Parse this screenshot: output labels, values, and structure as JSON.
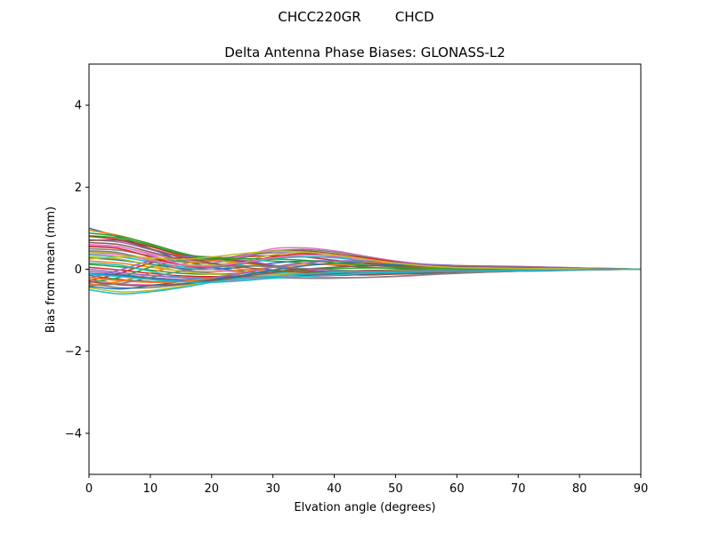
{
  "figure": {
    "suptitle": "CHCC220GR        CHCD"
  },
  "chart_data": {
    "type": "line",
    "title": "Delta Antenna Phase Biases: GLONASS-L2",
    "xlabel": "Elvation angle (degrees)",
    "ylabel": "Bias from mean (mm)",
    "xlim": [
      0,
      90
    ],
    "ylim": [
      -5,
      5
    ],
    "xticks": [
      0,
      10,
      20,
      30,
      40,
      50,
      60,
      70,
      80,
      90
    ],
    "xtick_labels": [
      "0",
      "10",
      "20",
      "30",
      "40",
      "50",
      "60",
      "70",
      "80",
      "90"
    ],
    "yticks": [
      -4,
      -2,
      0,
      2,
      4
    ],
    "ytick_labels": [
      "−4",
      "−2",
      "0",
      "2",
      "4"
    ],
    "grid": false,
    "legend": "none",
    "colors": [
      "#1f77b4",
      "#ff7f0e",
      "#2ca02c",
      "#d62728",
      "#9467bd",
      "#8c564b",
      "#e377c2",
      "#7f7f7f",
      "#bcbd22",
      "#17becf"
    ],
    "x": [
      0,
      5,
      10,
      15,
      20,
      25,
      30,
      35,
      40,
      45,
      50,
      55,
      60,
      65,
      70,
      75,
      80,
      85,
      90
    ],
    "series": [
      {
        "values": [
          1.0,
          0.78,
          0.5,
          0.22,
          0.05,
          -0.05,
          -0.1,
          -0.12,
          -0.12,
          -0.1,
          -0.08,
          -0.06,
          -0.04,
          -0.02,
          0.0,
          0.02,
          0.03,
          0.02,
          0.0
        ]
      },
      {
        "values": [
          0.95,
          0.82,
          0.6,
          0.32,
          0.12,
          0.0,
          -0.05,
          -0.08,
          -0.08,
          -0.06,
          -0.04,
          -0.03,
          -0.01,
          0.0,
          0.02,
          0.03,
          0.03,
          0.02,
          0.0
        ]
      },
      {
        "values": [
          0.88,
          0.8,
          0.62,
          0.4,
          0.25,
          0.22,
          0.2,
          0.15,
          0.1,
          0.05,
          0.02,
          0.0,
          -0.02,
          -0.02,
          -0.01,
          0.0,
          0.01,
          0.01,
          0.0
        ]
      },
      {
        "values": [
          0.8,
          0.72,
          0.55,
          0.35,
          0.28,
          0.3,
          0.33,
          0.3,
          0.22,
          0.14,
          0.08,
          0.04,
          0.02,
          0.01,
          0.0,
          0.0,
          0.0,
          0.0,
          0.0
        ]
      },
      {
        "values": [
          0.72,
          0.66,
          0.48,
          0.3,
          0.25,
          0.32,
          0.4,
          0.38,
          0.3,
          0.2,
          0.12,
          0.06,
          0.03,
          0.02,
          0.01,
          0.0,
          0.0,
          0.0,
          0.0
        ]
      },
      {
        "values": [
          0.65,
          0.6,
          0.42,
          0.25,
          0.22,
          0.34,
          0.45,
          0.45,
          0.38,
          0.26,
          0.15,
          0.08,
          0.05,
          0.04,
          0.03,
          0.02,
          0.01,
          0.0,
          0.0
        ]
      },
      {
        "values": [
          0.58,
          0.54,
          0.38,
          0.22,
          0.2,
          0.32,
          0.5,
          0.52,
          0.45,
          0.32,
          0.2,
          0.12,
          0.08,
          0.06,
          0.05,
          0.04,
          0.02,
          0.01,
          0.0
        ]
      },
      {
        "values": [
          0.5,
          0.46,
          0.32,
          0.18,
          0.15,
          0.28,
          0.44,
          0.48,
          0.42,
          0.3,
          0.18,
          0.1,
          0.06,
          0.05,
          0.04,
          0.03,
          0.02,
          0.01,
          0.0
        ]
      },
      {
        "values": [
          0.42,
          0.38,
          0.25,
          0.12,
          0.1,
          0.2,
          0.35,
          0.4,
          0.36,
          0.26,
          0.16,
          0.09,
          0.05,
          0.04,
          0.03,
          0.02,
          0.01,
          0.0,
          0.0
        ]
      },
      {
        "values": [
          0.35,
          0.3,
          0.18,
          0.06,
          0.04,
          0.12,
          0.25,
          0.3,
          0.28,
          0.2,
          0.12,
          0.07,
          0.04,
          0.03,
          0.02,
          0.02,
          0.01,
          0.0,
          0.0
        ]
      },
      {
        "values": [
          0.28,
          0.22,
          0.12,
          0.02,
          0.0,
          0.05,
          0.15,
          0.2,
          0.2,
          0.15,
          0.1,
          0.06,
          0.03,
          0.02,
          0.02,
          0.01,
          0.01,
          0.0,
          0.0
        ]
      },
      {
        "values": [
          0.2,
          0.15,
          0.05,
          -0.04,
          -0.06,
          -0.02,
          0.05,
          0.1,
          0.12,
          0.1,
          0.07,
          0.04,
          0.02,
          0.02,
          0.01,
          0.01,
          0.0,
          0.0,
          0.0
        ]
      },
      {
        "values": [
          0.12,
          0.06,
          -0.02,
          -0.1,
          -0.12,
          -0.1,
          -0.05,
          0.0,
          0.02,
          0.03,
          0.03,
          0.02,
          0.02,
          0.01,
          0.01,
          0.0,
          0.0,
          0.0,
          0.0
        ]
      },
      {
        "values": [
          0.05,
          -0.02,
          -0.1,
          -0.16,
          -0.18,
          -0.16,
          -0.12,
          -0.08,
          -0.05,
          -0.03,
          -0.02,
          -0.01,
          0.0,
          0.0,
          0.0,
          0.0,
          0.0,
          0.0,
          0.0
        ]
      },
      {
        "values": [
          -0.05,
          -0.12,
          -0.2,
          -0.25,
          -0.26,
          -0.24,
          -0.2,
          -0.15,
          -0.1,
          -0.07,
          -0.05,
          -0.03,
          -0.02,
          -0.01,
          0.0,
          0.0,
          0.0,
          0.0,
          0.0
        ]
      },
      {
        "values": [
          -0.15,
          -0.25,
          -0.3,
          -0.3,
          -0.28,
          -0.24,
          -0.2,
          -0.16,
          -0.12,
          -0.09,
          -0.06,
          -0.04,
          -0.03,
          -0.02,
          -0.01,
          0.0,
          0.0,
          0.0,
          0.0
        ]
      },
      {
        "values": [
          -0.25,
          -0.35,
          -0.38,
          -0.35,
          -0.3,
          -0.25,
          -0.2,
          -0.17,
          -0.15,
          -0.12,
          -0.08,
          -0.05,
          -0.04,
          -0.03,
          -0.02,
          -0.02,
          -0.01,
          0.0,
          0.0
        ]
      },
      {
        "values": [
          -0.35,
          -0.45,
          -0.45,
          -0.38,
          -0.3,
          -0.22,
          -0.15,
          -0.12,
          -0.1,
          -0.08,
          -0.06,
          -0.05,
          -0.04,
          -0.04,
          -0.03,
          -0.02,
          -0.01,
          0.0,
          0.0
        ]
      },
      {
        "values": [
          -0.45,
          -0.55,
          -0.52,
          -0.42,
          -0.3,
          -0.2,
          -0.12,
          -0.08,
          -0.08,
          -0.08,
          -0.07,
          -0.06,
          -0.05,
          -0.04,
          -0.03,
          -0.02,
          -0.01,
          0.0,
          0.0
        ]
      },
      {
        "values": [
          -0.5,
          -0.6,
          -0.55,
          -0.45,
          -0.32,
          -0.2,
          -0.1,
          -0.05,
          -0.05,
          -0.06,
          -0.06,
          -0.05,
          -0.05,
          -0.04,
          -0.03,
          -0.02,
          -0.01,
          0.0,
          0.0
        ]
      },
      {
        "values": [
          -0.42,
          -0.48,
          -0.4,
          -0.3,
          -0.22,
          -0.18,
          -0.15,
          -0.15,
          -0.15,
          -0.13,
          -0.1,
          -0.08,
          -0.06,
          -0.05,
          -0.04,
          -0.03,
          -0.02,
          -0.01,
          0.0
        ]
      },
      {
        "values": [
          -0.38,
          -0.3,
          -0.1,
          0.12,
          0.2,
          0.15,
          0.05,
          -0.05,
          -0.1,
          -0.1,
          -0.08,
          -0.06,
          -0.04,
          -0.03,
          -0.02,
          -0.02,
          -0.01,
          0.0,
          0.0
        ]
      },
      {
        "values": [
          -0.32,
          -0.2,
          0.05,
          0.22,
          0.25,
          0.18,
          0.06,
          -0.04,
          -0.1,
          -0.1,
          -0.08,
          -0.06,
          -0.04,
          -0.03,
          -0.02,
          -0.01,
          -0.01,
          0.0,
          0.0
        ]
      },
      {
        "values": [
          -0.28,
          -0.1,
          0.15,
          0.28,
          0.28,
          0.2,
          0.08,
          -0.02,
          -0.08,
          -0.1,
          -0.08,
          -0.06,
          -0.04,
          -0.03,
          -0.02,
          -0.01,
          0.0,
          0.0,
          0.0
        ]
      },
      {
        "values": [
          -0.22,
          -0.02,
          0.2,
          0.3,
          0.3,
          0.22,
          0.1,
          0.0,
          -0.06,
          -0.08,
          -0.07,
          -0.05,
          -0.03,
          -0.02,
          -0.01,
          0.0,
          0.0,
          0.0,
          0.0
        ]
      },
      {
        "values": [
          0.7,
          0.7,
          0.5,
          0.3,
          0.15,
          0.05,
          -0.02,
          -0.08,
          -0.12,
          -0.14,
          -0.12,
          -0.1,
          -0.07,
          -0.05,
          -0.03,
          -0.02,
          -0.01,
          0.0,
          0.0
        ]
      },
      {
        "values": [
          0.6,
          0.55,
          0.35,
          0.12,
          0.0,
          -0.08,
          -0.14,
          -0.18,
          -0.2,
          -0.2,
          -0.18,
          -0.14,
          -0.1,
          -0.07,
          -0.05,
          -0.03,
          -0.02,
          -0.01,
          0.0
        ]
      },
      {
        "values": [
          0.45,
          0.4,
          0.2,
          0.0,
          -0.1,
          -0.16,
          -0.2,
          -0.22,
          -0.22,
          -0.2,
          -0.17,
          -0.13,
          -0.1,
          -0.07,
          -0.05,
          -0.04,
          -0.02,
          -0.01,
          0.0
        ]
      },
      {
        "values": [
          0.3,
          0.25,
          0.1,
          -0.05,
          -0.12,
          -0.15,
          -0.15,
          -0.12,
          -0.08,
          -0.05,
          -0.03,
          -0.02,
          -0.01,
          0.0,
          0.0,
          0.0,
          0.0,
          0.0,
          0.0
        ]
      },
      {
        "values": [
          0.15,
          0.1,
          -0.05,
          -0.2,
          -0.25,
          -0.22,
          -0.18,
          -0.12,
          -0.08,
          -0.06,
          -0.04,
          -0.03,
          -0.02,
          -0.01,
          0.0,
          0.0,
          0.0,
          0.0,
          0.0
        ]
      },
      {
        "values": [
          -0.1,
          -0.15,
          -0.22,
          -0.28,
          -0.25,
          -0.15,
          -0.02,
          0.08,
          0.15,
          0.15,
          0.12,
          0.1,
          0.08,
          0.07,
          0.06,
          0.05,
          0.03,
          0.01,
          0.0
        ]
      },
      {
        "values": [
          -0.2,
          -0.28,
          -0.32,
          -0.3,
          -0.22,
          -0.08,
          0.06,
          0.15,
          0.2,
          0.18,
          0.14,
          0.11,
          0.09,
          0.08,
          0.07,
          0.05,
          0.03,
          0.01,
          0.0
        ]
      },
      {
        "values": [
          0.82,
          0.76,
          0.58,
          0.38,
          0.28,
          0.26,
          0.25,
          0.22,
          0.16,
          0.1,
          0.06,
          0.03,
          0.01,
          0.0,
          0.0,
          0.0,
          0.0,
          0.0,
          0.0
        ]
      },
      {
        "values": [
          0.55,
          0.5,
          0.3,
          0.1,
          0.05,
          0.15,
          0.3,
          0.38,
          0.36,
          0.28,
          0.18,
          0.1,
          0.06,
          0.05,
          0.04,
          0.03,
          0.02,
          0.01,
          0.0
        ]
      },
      {
        "values": [
          0.0,
          -0.08,
          -0.15,
          -0.2,
          -0.2,
          -0.1,
          0.05,
          0.15,
          0.2,
          0.2,
          0.16,
          0.12,
          0.09,
          0.07,
          0.06,
          0.05,
          0.03,
          0.01,
          0.0
        ]
      },
      {
        "values": [
          -0.3,
          -0.38,
          -0.4,
          -0.36,
          -0.28,
          -0.18,
          -0.08,
          0.0,
          0.05,
          0.08,
          0.08,
          0.07,
          0.06,
          0.05,
          0.04,
          0.03,
          0.02,
          0.01,
          0.0
        ]
      },
      {
        "values": [
          0.38,
          0.35,
          0.22,
          0.1,
          0.08,
          0.16,
          0.28,
          0.34,
          0.32,
          0.24,
          0.15,
          0.08,
          0.04,
          0.03,
          0.02,
          0.02,
          0.01,
          0.0,
          0.0
        ]
      },
      {
        "values": [
          -0.4,
          -0.35,
          -0.2,
          -0.05,
          0.05,
          0.08,
          0.06,
          0.02,
          -0.02,
          -0.04,
          -0.04,
          -0.03,
          -0.02,
          -0.02,
          -0.01,
          -0.01,
          0.0,
          0.0,
          0.0
        ]
      },
      {
        "values": [
          0.25,
          0.3,
          0.28,
          0.24,
          0.3,
          0.38,
          0.44,
          0.42,
          0.35,
          0.25,
          0.15,
          0.08,
          0.04,
          0.03,
          0.02,
          0.01,
          0.01,
          0.0,
          0.0
        ]
      },
      {
        "values": [
          -0.12,
          -0.18,
          -0.25,
          -0.3,
          -0.32,
          -0.28,
          -0.22,
          -0.18,
          -0.14,
          -0.1,
          -0.08,
          -0.06,
          -0.05,
          -0.04,
          -0.03,
          -0.02,
          -0.01,
          0.0,
          0.0
        ]
      }
    ]
  }
}
